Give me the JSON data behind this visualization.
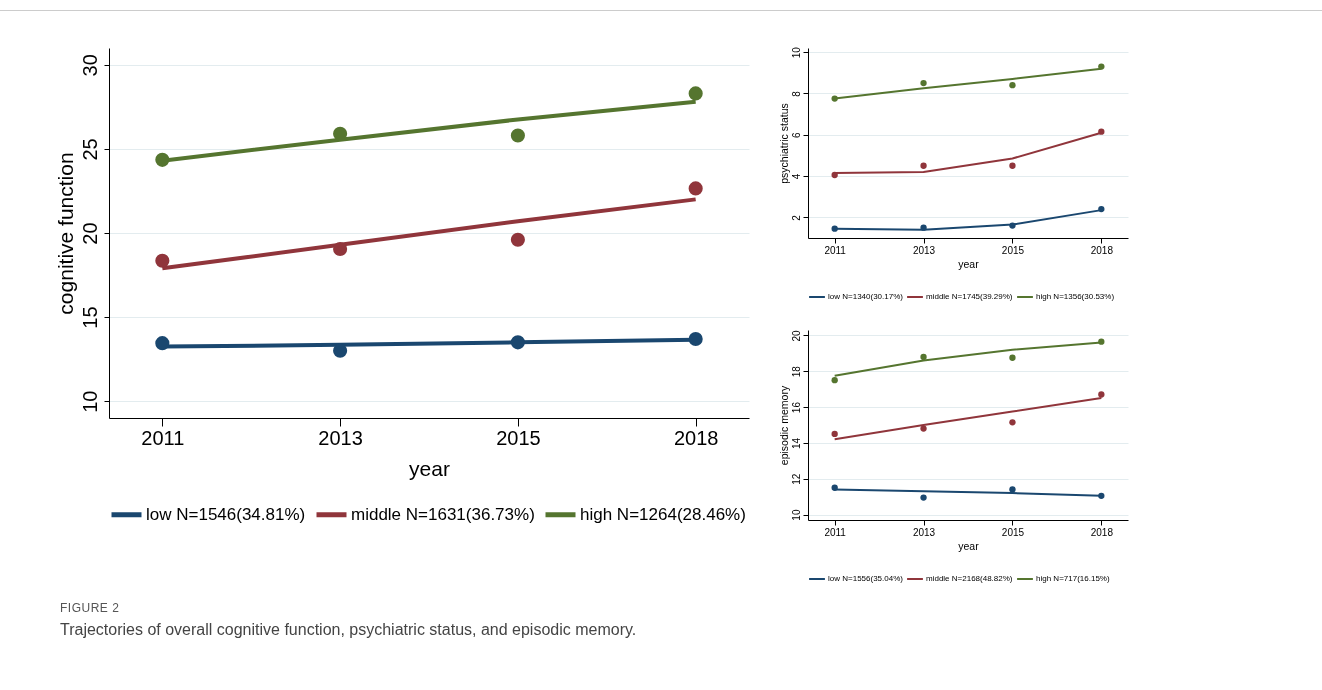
{
  "chart_data": [
    {
      "type": "scatter",
      "title": "FIGURE 2",
      "annotations": [
        "Trajectories of overall cognitive function, psychiatric status, and episodic memory."
      ],
      "xlabel": "year",
      "ylabel": "cognitive function",
      "categories": [
        "2011",
        "2013",
        "2015",
        "2018"
      ],
      "ylim": [
        9,
        31
      ],
      "yticks": [
        10,
        15,
        20,
        25,
        30
      ],
      "grid": "y",
      "legend": "bottom",
      "series": [
        {
          "type": "line",
          "marker": "none",
          "name": "low N=1546(34.81%)",
          "color": "#1a476f",
          "values": [
            13.25,
            13.35,
            13.5,
            13.65
          ]
        },
        {
          "type": "line",
          "marker": "none",
          "name": "middle N=1631(36.73%)",
          "color": "#90353b",
          "values": [
            17.9,
            19.3,
            20.7,
            22.0
          ]
        },
        {
          "type": "line",
          "marker": "none",
          "name": "high N=1264(28.46%)",
          "color": "#55752f",
          "values": [
            24.3,
            25.55,
            26.75,
            27.8
          ]
        },
        {
          "type": "scatter",
          "marker": "circle",
          "color": "#1a476f",
          "values": [
            13.45,
            13.0,
            13.5,
            13.7
          ]
        },
        {
          "type": "scatter",
          "marker": "circle",
          "color": "#90353b",
          "values": [
            18.35,
            19.05,
            19.6,
            22.65
          ]
        },
        {
          "type": "scatter",
          "marker": "circle",
          "color": "#55752f",
          "values": [
            24.35,
            25.9,
            25.8,
            28.3
          ]
        }
      ]
    },
    {
      "type": "scatter",
      "xlabel": "year",
      "ylabel": "psychiatric status",
      "categories": [
        "2011",
        "2013",
        "2015",
        "2018"
      ],
      "ylim": [
        1,
        10.2
      ],
      "yticks": [
        2,
        4,
        6,
        8,
        10
      ],
      "grid": "y",
      "legend": "bottom",
      "series": [
        {
          "type": "line",
          "marker": "none",
          "name": "low N=1340(30.17%)",
          "color": "#1a476f",
          "values": [
            1.45,
            1.4,
            1.65,
            2.35
          ]
        },
        {
          "type": "line",
          "marker": "none",
          "name": "middle N=1745(39.29%)",
          "color": "#90353b",
          "values": [
            4.15,
            4.2,
            4.85,
            6.1
          ]
        },
        {
          "type": "line",
          "marker": "none",
          "name": "high N=1356(30.53%)",
          "color": "#55752f",
          "values": [
            7.75,
            8.25,
            8.7,
            9.2
          ]
        },
        {
          "type": "scatter",
          "marker": "circle",
          "color": "#1a476f",
          "values": [
            1.45,
            1.5,
            1.6,
            2.4
          ]
        },
        {
          "type": "scatter",
          "marker": "circle",
          "color": "#90353b",
          "values": [
            4.05,
            4.5,
            4.5,
            6.15
          ]
        },
        {
          "type": "scatter",
          "marker": "circle",
          "color": "#55752f",
          "values": [
            7.75,
            8.5,
            8.4,
            9.3
          ]
        }
      ]
    },
    {
      "type": "scatter",
      "xlabel": "year",
      "ylabel": "episodic memory",
      "categories": [
        "2011",
        "2013",
        "2015",
        "2018"
      ],
      "ylim": [
        9.7,
        20.3
      ],
      "yticks": [
        10,
        12,
        14,
        16,
        18,
        20
      ],
      "grid": "y",
      "legend": "bottom",
      "series": [
        {
          "type": "line",
          "marker": "none",
          "name": "low N=1556(35.04%)",
          "color": "#1a476f",
          "values": [
            11.4,
            11.3,
            11.2,
            11.05
          ]
        },
        {
          "type": "line",
          "marker": "none",
          "name": "middle N=2168(48.82%)",
          "color": "#90353b",
          "values": [
            14.2,
            15.0,
            15.75,
            16.5
          ]
        },
        {
          "type": "line",
          "marker": "none",
          "name": "high N=717(16.15%)",
          "color": "#55752f",
          "values": [
            17.75,
            18.6,
            19.2,
            19.6
          ]
        },
        {
          "type": "scatter",
          "marker": "circle",
          "color": "#1a476f",
          "values": [
            11.5,
            10.95,
            11.4,
            11.05
          ]
        },
        {
          "type": "scatter",
          "marker": "circle",
          "color": "#90353b",
          "values": [
            14.5,
            14.8,
            15.15,
            16.7
          ]
        },
        {
          "type": "scatter",
          "marker": "circle",
          "color": "#55752f",
          "values": [
            17.5,
            18.8,
            18.75,
            19.65
          ]
        }
      ]
    }
  ]
}
